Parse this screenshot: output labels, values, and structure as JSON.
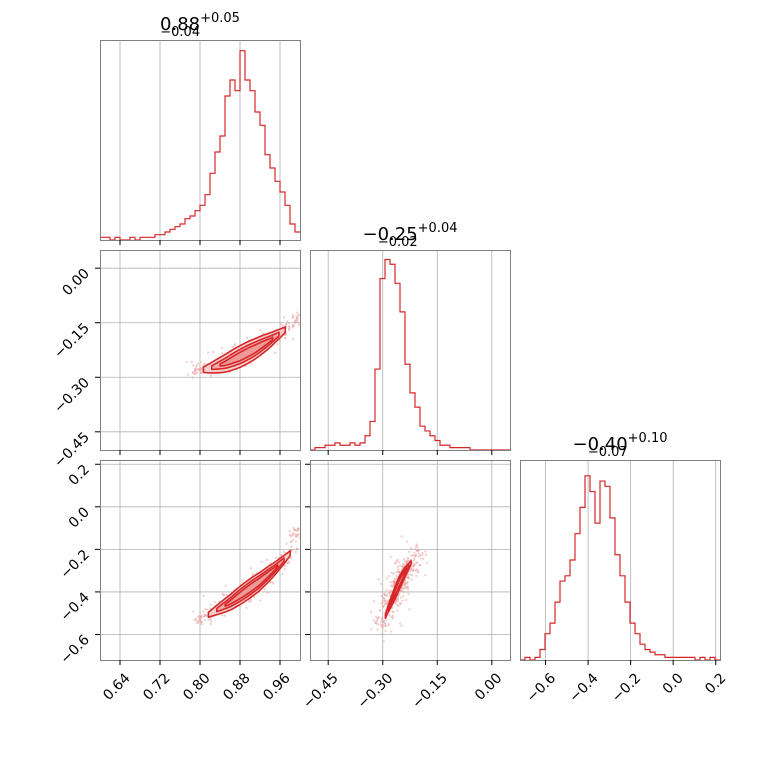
{
  "colors": {
    "line": "#d62728",
    "grid": "#b0b0b0",
    "frame": "#808080",
    "scatter": "#e8a0a0",
    "fill_outer": "#f6c9c9",
    "fill_inner": "#ec8d8d"
  },
  "chart_data": [
    {
      "id": "hist-p1",
      "type": "histogram",
      "title": {
        "median": "0.88",
        "plus": "+0.05",
        "minus": "−0.04"
      },
      "xlim": [
        0.6,
        1.0
      ],
      "xticks": [
        0.64,
        0.72,
        0.8,
        0.88,
        0.96
      ],
      "bin_edges_range": [
        0.6,
        1.0
      ],
      "counts": [
        1,
        1,
        0,
        1,
        0,
        0,
        1,
        0,
        1,
        1,
        1,
        2,
        2,
        3,
        4,
        5,
        6,
        8,
        9,
        11,
        13,
        17,
        25,
        33,
        39,
        54,
        60,
        56,
        71,
        60,
        56,
        48,
        43,
        32,
        27,
        22,
        18,
        13,
        6,
        3
      ],
      "ymax": 75,
      "grid": true
    },
    {
      "id": "hist-p2",
      "type": "histogram",
      "title": {
        "median": "−0.25",
        "plus": "+0.04",
        "minus": "−0.02"
      },
      "xlim": [
        -0.5,
        0.05
      ],
      "xticks": [
        -0.45,
        -0.3,
        -0.15,
        0.0
      ],
      "bin_edges_range": [
        -0.5,
        0.05
      ],
      "counts": [
        0,
        1,
        1,
        2,
        2,
        3,
        2,
        2,
        3,
        2,
        3,
        6,
        12,
        34,
        72,
        80,
        78,
        70,
        58,
        36,
        24,
        18,
        10,
        8,
        6,
        4,
        2,
        2,
        1,
        1,
        1,
        1,
        0,
        0,
        0,
        0,
        0,
        0,
        0,
        0
      ],
      "ymax": 84,
      "grid": true
    },
    {
      "id": "hist-p3",
      "type": "histogram",
      "title": {
        "median": "−0.40",
        "plus": "+0.10",
        "minus": "−0.07"
      },
      "xlim": [
        -0.72,
        0.22
      ],
      "xticks": [
        -0.6,
        -0.4,
        -0.2,
        0.0,
        0.2
      ],
      "bin_edges_range": [
        -0.72,
        0.22
      ],
      "counts": [
        0,
        1,
        0,
        1,
        4,
        10,
        14,
        22,
        30,
        32,
        38,
        48,
        58,
        70,
        64,
        52,
        68,
        66,
        54,
        40,
        32,
        22,
        14,
        10,
        6,
        4,
        3,
        2,
        2,
        1,
        1,
        1,
        1,
        1,
        1,
        0,
        1,
        0,
        1,
        0
      ],
      "ymax": 76,
      "grid": true
    },
    {
      "id": "scatter-p1-p2",
      "type": "scatter",
      "x_param": "p1",
      "y_param": "p2",
      "xlim": [
        0.6,
        1.0
      ],
      "ylim": [
        -0.5,
        0.05
      ],
      "xticks": [
        0.64,
        0.72,
        0.8,
        0.88,
        0.96
      ],
      "yticks": [
        0.0,
        -0.15,
        -0.3,
        -0.45
      ],
      "ytick_labels": [
        "0.00",
        "−0.15",
        "−0.30",
        "−0.45"
      ],
      "ridge_points": [
        [
          0.79,
          -0.285
        ],
        [
          0.82,
          -0.275
        ],
        [
          0.85,
          -0.262
        ],
        [
          0.88,
          -0.243
        ],
        [
          0.91,
          -0.222
        ],
        [
          0.94,
          -0.198
        ],
        [
          0.97,
          -0.17
        ],
        [
          0.995,
          -0.14
        ]
      ],
      "contour_widths": [
        0.03,
        0.02,
        0.012
      ],
      "scatter_spread": [
        0.009,
        0.018
      ]
    },
    {
      "id": "scatter-p1-p3",
      "type": "scatter",
      "x_param": "p1",
      "y_param": "p3",
      "xlim": [
        0.6,
        1.0
      ],
      "ylim": [
        -0.72,
        0.22
      ],
      "xticks": [
        0.64,
        0.72,
        0.8,
        0.88,
        0.96
      ],
      "yticks": [
        0.2,
        0.0,
        -0.2,
        -0.4,
        -0.6
      ],
      "ytick_labels": [
        "0.2",
        "0.0",
        "−0.2",
        "−0.4",
        "−0.6"
      ],
      "ridge_points": [
        [
          0.8,
          -0.53
        ],
        [
          0.83,
          -0.49
        ],
        [
          0.86,
          -0.45
        ],
        [
          0.89,
          -0.4
        ],
        [
          0.92,
          -0.35
        ],
        [
          0.95,
          -0.29
        ],
        [
          0.98,
          -0.22
        ],
        [
          0.995,
          -0.12
        ]
      ],
      "contour_widths": [
        0.045,
        0.03,
        0.018
      ],
      "scatter_spread": [
        0.012,
        0.03
      ]
    },
    {
      "id": "scatter-p2-p3",
      "type": "scatter",
      "x_param": "p2",
      "y_param": "p3",
      "xlim": [
        -0.5,
        0.05
      ],
      "ylim": [
        -0.72,
        0.22
      ],
      "xticks": [
        -0.45,
        -0.3,
        -0.15,
        0.0
      ],
      "xtick_labels": [
        "−0.45",
        "−0.30",
        "−0.15",
        "0.00"
      ],
      "ridge_points": [
        [
          -0.3,
          -0.55
        ],
        [
          -0.285,
          -0.48
        ],
        [
          -0.27,
          -0.42
        ],
        [
          -0.255,
          -0.36
        ],
        [
          -0.24,
          -0.31
        ],
        [
          -0.225,
          -0.27
        ],
        [
          -0.205,
          -0.22
        ]
      ],
      "contour_widths": [
        0.03,
        0.022,
        0.013
      ],
      "scatter_spread": [
        0.02,
        0.04
      ]
    }
  ],
  "tick_labels": {
    "p1_x": [
      "0.64",
      "0.72",
      "0.80",
      "0.88",
      "0.96"
    ],
    "p2_x": [
      "−0.45",
      "−0.30",
      "−0.15",
      "0.00"
    ],
    "p3_x": [
      "−0.6",
      "−0.4",
      "−0.2",
      "0.0",
      "0.2"
    ]
  }
}
